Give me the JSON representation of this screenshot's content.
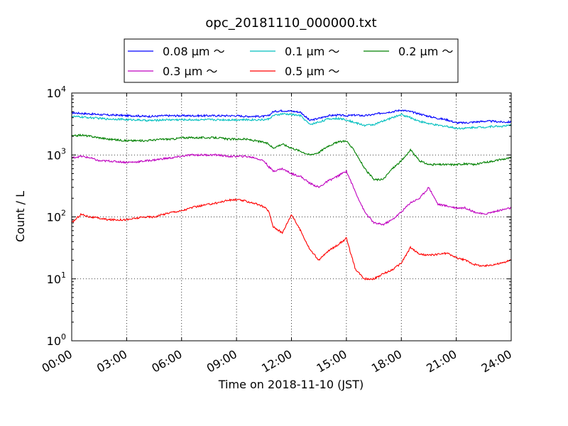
{
  "chart_data": {
    "type": "line",
    "title": "opc_20181110_000000.txt",
    "xlabel": "Time on 2018-11-10 (JST)",
    "ylabel": "Count / L",
    "yscale": "log",
    "ylim": [
      1,
      10000
    ],
    "xlim": [
      "2018-11-10 00:00",
      "2018-11-11 00:00"
    ],
    "grid": true,
    "legend_position": "top-center",
    "x_ticks": [
      "00:00",
      "03:00",
      "06:00",
      "09:00",
      "12:00",
      "15:00",
      "18:00",
      "21:00",
      "24:00"
    ],
    "y_ticks": [
      {
        "base": "10",
        "exp": "0",
        "value": 1
      },
      {
        "base": "10",
        "exp": "1",
        "value": 10
      },
      {
        "base": "10",
        "exp": "2",
        "value": 100
      },
      {
        "base": "10",
        "exp": "3",
        "value": 1000
      },
      {
        "base": "10",
        "exp": "4",
        "value": 10000
      }
    ],
    "x": [
      "00:00",
      "00:30",
      "01:00",
      "01:30",
      "02:00",
      "02:30",
      "03:00",
      "03:30",
      "04:00",
      "04:30",
      "05:00",
      "05:30",
      "06:00",
      "06:30",
      "07:00",
      "07:30",
      "08:00",
      "08:30",
      "09:00",
      "09:30",
      "10:00",
      "10:30",
      "10:45",
      "11:00",
      "11:30",
      "12:00",
      "12:30",
      "13:00",
      "13:30",
      "14:00",
      "14:30",
      "15:00",
      "15:30",
      "16:00",
      "16:30",
      "17:00",
      "17:30",
      "18:00",
      "18:30",
      "19:00",
      "19:30",
      "20:00",
      "20:30",
      "21:00",
      "21:30",
      "22:00",
      "22:30",
      "23:00",
      "23:30",
      "24:00"
    ],
    "series": [
      {
        "name": "0.08 μm ～",
        "color": "#0000ff",
        "values": [
          4800,
          4700,
          4600,
          4500,
          4400,
          4400,
          4300,
          4300,
          4200,
          4200,
          4300,
          4300,
          4300,
          4300,
          4300,
          4300,
          4300,
          4300,
          4300,
          4200,
          4200,
          4200,
          4300,
          5000,
          5200,
          5100,
          4900,
          3600,
          3900,
          4300,
          4400,
          4300,
          4400,
          4300,
          4500,
          4800,
          5000,
          5300,
          5000,
          4600,
          4200,
          3900,
          3700,
          3300,
          3300,
          3400,
          3500,
          3500,
          3400,
          3400
        ]
      },
      {
        "name": "0.1 μm ～",
        "color": "#00bfbf",
        "values": [
          4200,
          4100,
          4000,
          3900,
          3800,
          3800,
          3700,
          3700,
          3600,
          3600,
          3700,
          3700,
          3700,
          3700,
          3700,
          3700,
          3700,
          3700,
          3700,
          3700,
          3700,
          3700,
          3800,
          4300,
          4600,
          4500,
          4300,
          3100,
          3400,
          3800,
          3900,
          3700,
          3300,
          3000,
          3100,
          3500,
          4000,
          4500,
          4000,
          3500,
          3200,
          3000,
          2900,
          2700,
          2700,
          2800,
          2800,
          2900,
          2900,
          3000
        ]
      },
      {
        "name": "0.2 μm ～",
        "color": "#008000",
        "values": [
          2000,
          2100,
          2000,
          1900,
          1800,
          1750,
          1700,
          1700,
          1700,
          1750,
          1800,
          1800,
          1900,
          1900,
          1900,
          1900,
          1900,
          1800,
          1800,
          1800,
          1700,
          1600,
          1500,
          1300,
          1500,
          1300,
          1150,
          1000,
          1100,
          1400,
          1600,
          1700,
          1100,
          600,
          400,
          400,
          600,
          800,
          1200,
          800,
          700,
          700,
          700,
          700,
          720,
          700,
          750,
          800,
          850,
          900
        ]
      },
      {
        "name": "0.3 μm ～",
        "color": "#bf00bf",
        "values": [
          900,
          950,
          900,
          800,
          800,
          780,
          760,
          770,
          800,
          830,
          870,
          900,
          950,
          1000,
          1000,
          1000,
          1000,
          950,
          950,
          950,
          900,
          800,
          650,
          550,
          600,
          500,
          450,
          350,
          300,
          380,
          450,
          550,
          250,
          120,
          80,
          75,
          90,
          120,
          170,
          200,
          300,
          160,
          150,
          140,
          140,
          120,
          110,
          120,
          130,
          140
        ]
      },
      {
        "name": "0.5 μm ～",
        "color": "#ff0000",
        "values": [
          80,
          110,
          100,
          95,
          90,
          90,
          90,
          95,
          100,
          100,
          110,
          120,
          125,
          140,
          150,
          160,
          170,
          185,
          190,
          180,
          165,
          145,
          125,
          70,
          55,
          110,
          60,
          30,
          20,
          28,
          35,
          45,
          14,
          10,
          10,
          12,
          14,
          18,
          32,
          25,
          24,
          25,
          26,
          22,
          20,
          17,
          16,
          17,
          18,
          20
        ]
      }
    ]
  }
}
